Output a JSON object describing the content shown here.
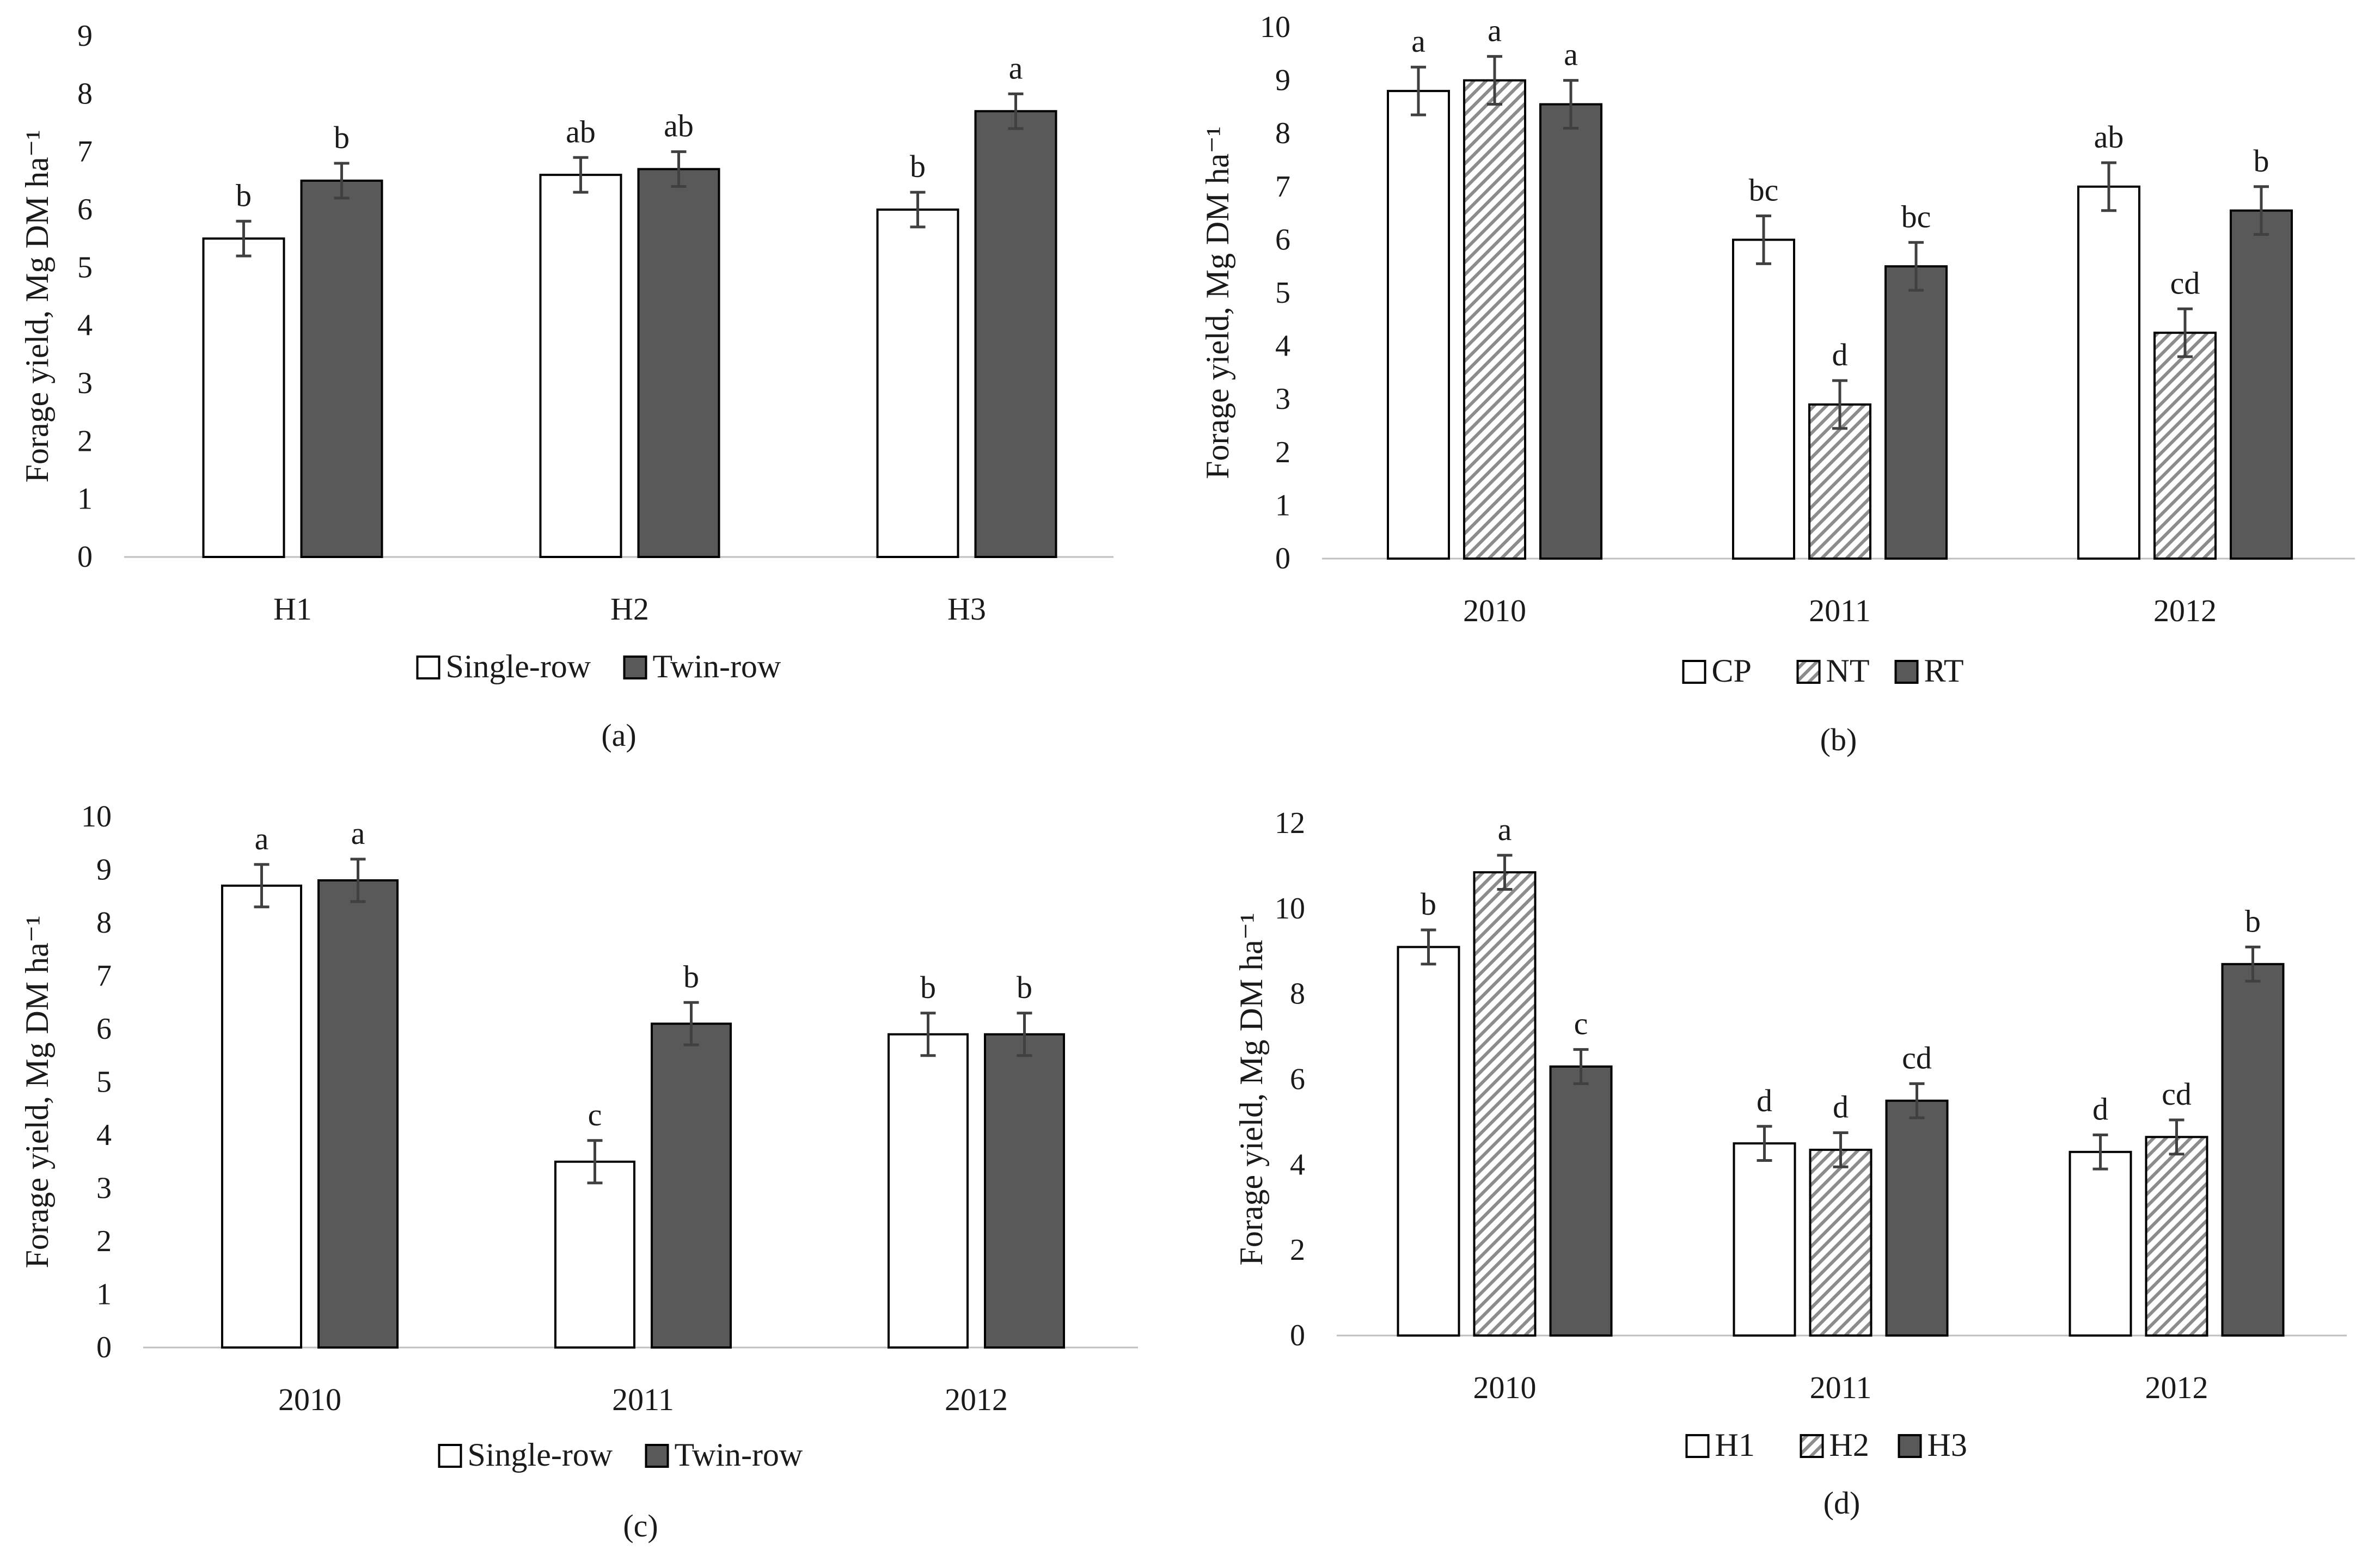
{
  "colors": {
    "white_bar": "#ffffff",
    "dark_bar": "#595959",
    "outline": "#000000",
    "axis": "#bfbfbf",
    "text": "#1a1a1a",
    "error_bar": "#404040"
  },
  "chart_data": [
    {
      "panel": "(a)",
      "type": "bar",
      "ylabel": "Forage yield, Mg DM ha⁻¹",
      "ylim": [
        0,
        9
      ],
      "yticks": [
        0,
        1,
        2,
        3,
        4,
        5,
        6,
        7,
        8,
        9
      ],
      "categories": [
        "H1",
        "H2",
        "H3"
      ],
      "series": [
        {
          "name": "Single-row",
          "pattern": "white",
          "values": [
            5.5,
            6.6,
            6.0
          ],
          "errors": [
            0.3,
            0.3,
            0.3
          ],
          "letters": [
            "b",
            "ab",
            "b"
          ]
        },
        {
          "name": "Twin-row",
          "pattern": "dark",
          "values": [
            6.5,
            6.7,
            7.7
          ],
          "errors": [
            0.3,
            0.3,
            0.3
          ],
          "letters": [
            "b",
            "ab",
            "a"
          ]
        }
      ],
      "grid": false,
      "legend": "bottom"
    },
    {
      "panel": "(b)",
      "type": "bar",
      "ylabel": "Forage yield, Mg DM ha⁻¹",
      "ylim": [
        0,
        10
      ],
      "yticks": [
        0,
        1,
        2,
        3,
        4,
        5,
        6,
        7,
        8,
        9,
        10
      ],
      "categories": [
        "2010",
        "2011",
        "2012"
      ],
      "series": [
        {
          "name": "CP",
          "pattern": "white",
          "values": [
            8.8,
            6.0,
            7.0
          ],
          "errors": [
            0.45,
            0.45,
            0.45
          ],
          "letters": [
            "a",
            "bc",
            "ab"
          ]
        },
        {
          "name": "NT",
          "pattern": "hatch",
          "values": [
            9.0,
            2.9,
            4.25
          ],
          "errors": [
            0.45,
            0.45,
            0.45
          ],
          "letters": [
            "a",
            "d",
            "cd"
          ]
        },
        {
          "name": "RT",
          "pattern": "dark",
          "values": [
            8.55,
            5.5,
            6.55
          ],
          "errors": [
            0.45,
            0.45,
            0.45
          ],
          "letters": [
            "a",
            "bc",
            "b"
          ]
        }
      ],
      "grid": false,
      "legend": "bottom"
    },
    {
      "panel": "(c)",
      "type": "bar",
      "ylabel": "Forage yield, Mg DM ha⁻¹",
      "ylim": [
        0,
        10
      ],
      "yticks": [
        0,
        1,
        2,
        3,
        4,
        5,
        6,
        7,
        8,
        9,
        10
      ],
      "categories": [
        "2010",
        "2011",
        "2012"
      ],
      "series": [
        {
          "name": "Single-row",
          "pattern": "white",
          "values": [
            8.7,
            3.5,
            5.9
          ],
          "errors": [
            0.4,
            0.4,
            0.4
          ],
          "letters": [
            "a",
            "c",
            "b"
          ]
        },
        {
          "name": "Twin-row",
          "pattern": "dark",
          "values": [
            8.8,
            6.1,
            5.9
          ],
          "errors": [
            0.4,
            0.4,
            0.4
          ],
          "letters": [
            "a",
            "b",
            "b"
          ]
        }
      ],
      "grid": false,
      "legend": "bottom"
    },
    {
      "panel": "(d)",
      "type": "bar",
      "ylabel": "Forage yield, Mg DM ha⁻¹",
      "ylim": [
        0,
        12
      ],
      "yticks": [
        0,
        2,
        4,
        6,
        8,
        10,
        12
      ],
      "categories": [
        "2010",
        "2011",
        "2012"
      ],
      "series": [
        {
          "name": "H1",
          "pattern": "white",
          "values": [
            9.1,
            4.5,
            4.3
          ],
          "errors": [
            0.4,
            0.4,
            0.4
          ],
          "letters": [
            "b",
            "d",
            "d"
          ]
        },
        {
          "name": "H2",
          "pattern": "hatch",
          "values": [
            10.85,
            4.35,
            4.65
          ],
          "errors": [
            0.4,
            0.4,
            0.4
          ],
          "letters": [
            "a",
            "d",
            "cd"
          ]
        },
        {
          "name": "H3",
          "pattern": "dark",
          "values": [
            6.3,
            5.5,
            8.7
          ],
          "errors": [
            0.4,
            0.4,
            0.4
          ],
          "letters": [
            "c",
            "cd",
            "b"
          ]
        }
      ],
      "grid": false,
      "legend": "bottom"
    }
  ]
}
